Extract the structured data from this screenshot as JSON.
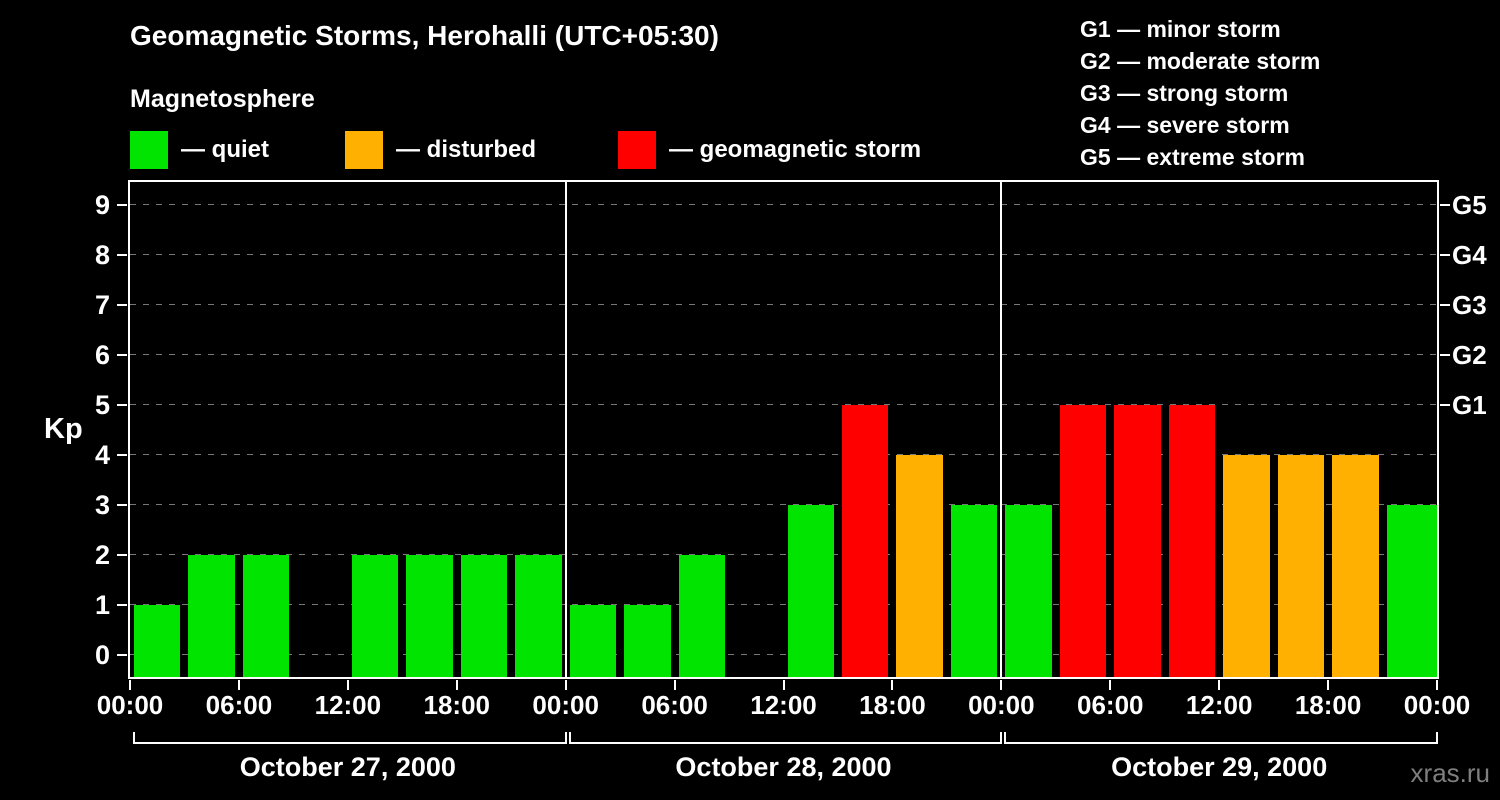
{
  "title": "Geomagnetic Storms, Herohalli (UTC+05:30)",
  "subtitle": "Magnetosphere",
  "kp_legend": {
    "items": [
      {
        "label": "— quiet",
        "color": "#00e400"
      },
      {
        "label": "— disturbed",
        "color": "#ffb000"
      },
      {
        "label": "— geomagnetic storm",
        "color": "#ff0000"
      }
    ]
  },
  "storm_scale_legend": {
    "items": [
      "G1 — minor storm",
      "G2 — moderate storm",
      "G3 — strong storm",
      "G4 — severe storm",
      "G5 — extreme storm"
    ]
  },
  "watermark": "xras.ru",
  "chart_data": {
    "type": "bar",
    "title": "Geomagnetic Storms, Herohalli (UTC+05:30)",
    "ylabel": "Kp",
    "ylim": [
      0,
      9
    ],
    "yticks": [
      0,
      1,
      2,
      3,
      4,
      5,
      6,
      7,
      8,
      9
    ],
    "grid": "horizontal-dashed",
    "interval_hours": 3,
    "x_tick_labels": [
      "00:00",
      "06:00",
      "12:00",
      "18:00",
      "00:00",
      "06:00",
      "12:00",
      "18:00",
      "00:00",
      "06:00",
      "12:00",
      "18:00",
      "00:00"
    ],
    "right_axis_ticks": [
      {
        "label": "G1",
        "kp": 5
      },
      {
        "label": "G2",
        "kp": 6
      },
      {
        "label": "G3",
        "kp": 7
      },
      {
        "label": "G4",
        "kp": 8
      },
      {
        "label": "G5",
        "kp": 9
      }
    ],
    "days": [
      {
        "label": "October 27, 2000",
        "values": [
          1,
          2,
          2,
          null,
          2,
          2,
          2,
          2
        ]
      },
      {
        "label": "October 28, 2000",
        "values": [
          1,
          1,
          2,
          null,
          3,
          5,
          4,
          3
        ]
      },
      {
        "label": "October 29, 2000",
        "values": [
          3,
          5,
          5,
          5,
          4,
          4,
          4,
          3
        ]
      }
    ],
    "next_day_partial_value": 3,
    "colors": {
      "quiet": "#00e400",
      "disturbed": "#ffb000",
      "storm": "#ff0000"
    },
    "color_thresholds": {
      "disturbed_at_kp": 4,
      "storm_at_kp": 5
    }
  }
}
